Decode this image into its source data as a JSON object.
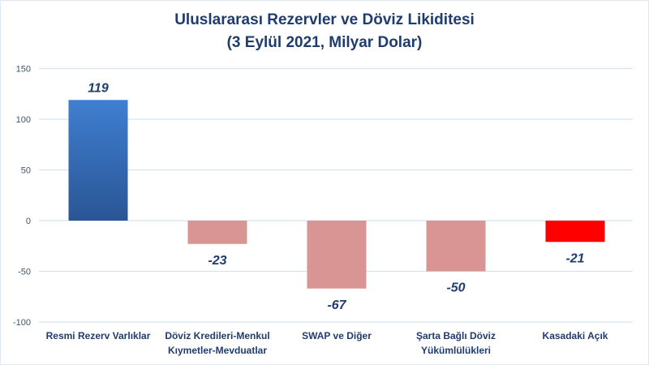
{
  "chart_data": {
    "type": "bar",
    "title": "Uluslararası Rezervler ve Döviz Likiditesi",
    "subtitle": "(3 Eylül 2021, Milyar Dolar)",
    "categories": [
      [
        "Resmi Rezerv Varlıklar"
      ],
      [
        "Döviz Kredileri-Menkul",
        "Kıymetler-Mevduatlar"
      ],
      [
        "SWAP ve Diğer"
      ],
      [
        "Şarta Bağlı Döviz",
        "Yükümlülükleri"
      ],
      [
        "Kasadaki Açık"
      ]
    ],
    "values": [
      119,
      -23,
      -67,
      -50,
      -21
    ],
    "data_labels": [
      "119",
      "-23",
      "-67",
      "-50",
      "-21"
    ],
    "colors": [
      "#3a72bf",
      "#d99594",
      "#d99594",
      "#d99594",
      "#ff0000"
    ],
    "ylim": [
      -100,
      150
    ],
    "yticks": [
      150,
      100,
      50,
      0,
      -50,
      -100
    ],
    "grid": true,
    "xlabel": "",
    "ylabel": ""
  }
}
